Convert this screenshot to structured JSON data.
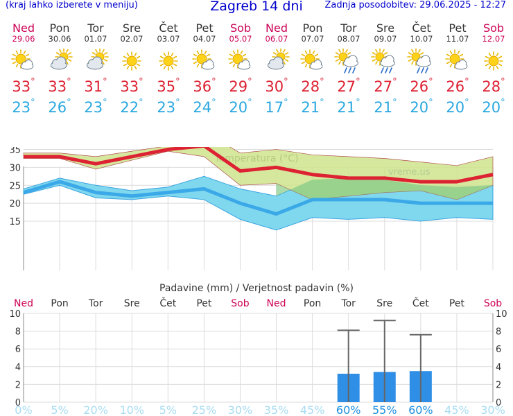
{
  "header": {
    "left": "(kraj lahko izberete v meniju)",
    "title": "Zagreb 14 dni",
    "right": "Zadnja posodobitev: 29.06.2025 - 12:27"
  },
  "days": [
    {
      "name": "Ned",
      "date": "29.06",
      "weekend": true,
      "icon": "sun-partly-cloudy-icon",
      "tmax": "33",
      "tmin": "23"
    },
    {
      "name": "Pon",
      "date": "30.06",
      "weekend": false,
      "icon": "cloudy-sun-icon",
      "tmax": "33",
      "tmin": "26"
    },
    {
      "name": "Tor",
      "date": "01.07",
      "weekend": false,
      "icon": "cloudy-sun-icon",
      "tmax": "31",
      "tmin": "23"
    },
    {
      "name": "Sre",
      "date": "02.07",
      "weekend": false,
      "icon": "sun-icon",
      "tmax": "33",
      "tmin": "22"
    },
    {
      "name": "Čet",
      "date": "03.07",
      "weekend": false,
      "icon": "sun-icon",
      "tmax": "35",
      "tmin": "23"
    },
    {
      "name": "Pet",
      "date": "04.07",
      "weekend": false,
      "icon": "sun-partly-cloudy-icon",
      "tmax": "36",
      "tmin": "24"
    },
    {
      "name": "Sob",
      "date": "05.07",
      "weekend": true,
      "icon": "sun-partly-cloudy-icon",
      "tmax": "29",
      "tmin": "20"
    },
    {
      "name": "Ned",
      "date": "06.07",
      "weekend": true,
      "icon": "cloudy-sun-icon",
      "tmax": "30",
      "tmin": "17"
    },
    {
      "name": "Pon",
      "date": "07.07",
      "weekend": false,
      "icon": "sun-partly-cloudy-icon",
      "tmax": "28",
      "tmin": "21"
    },
    {
      "name": "Tor",
      "date": "08.07",
      "weekend": false,
      "icon": "sun-rain-icon",
      "tmax": "27",
      "tmin": "21"
    },
    {
      "name": "Sre",
      "date": "09.07",
      "weekend": false,
      "icon": "sun-rain-icon",
      "tmax": "27",
      "tmin": "21"
    },
    {
      "name": "Čet",
      "date": "10.07",
      "weekend": false,
      "icon": "sun-rain-icon",
      "tmax": "26",
      "tmin": "20"
    },
    {
      "name": "Pet",
      "date": "11.07",
      "weekend": false,
      "icon": "sun-partly-cloudy-icon",
      "tmax": "26",
      "tmin": "20"
    },
    {
      "name": "Sob",
      "date": "12.07",
      "weekend": true,
      "icon": "sun-icon",
      "tmax": "28",
      "tmin": "20"
    }
  ],
  "colors": {
    "weekend": "#cc0055",
    "weekday": "#333333",
    "tmax": "#dd2233",
    "tmin": "#2aa8e0",
    "max_band": "#cfe48c",
    "min_band": "#80d8ee",
    "overlap": "#88cc88",
    "bars": "#2f8fe6",
    "whisker": "#666666",
    "prob_active": "#1a8fe0",
    "prob_inactive": "#a7dcf2"
  },
  "chart_data": [
    {
      "type": "line",
      "title": "Temperatura (°C)",
      "watermark": "vreme.us",
      "x": [
        "29.06",
        "30.06",
        "01.07",
        "02.07",
        "03.07",
        "04.07",
        "05.07",
        "06.07",
        "07.07",
        "08.07",
        "09.07",
        "10.07",
        "11.07",
        "12.07"
      ],
      "ylim": [
        12,
        41
      ],
      "yticks": [
        15,
        20,
        25,
        30,
        35,
        40
      ],
      "grid": true,
      "series": [
        {
          "values": [
            33,
            33,
            31,
            33,
            35,
            36,
            29,
            30,
            28,
            27,
            27,
            26,
            26,
            28
          ]
        },
        {
          "values": [
            23,
            26,
            23,
            22,
            23,
            24,
            20,
            17,
            21,
            21,
            21,
            20,
            20,
            20
          ]
        }
      ],
      "bands": [
        {
          "upper": [
            34,
            34,
            33,
            34.5,
            36,
            40,
            34,
            35,
            33.5,
            33,
            32.5,
            31.5,
            30.5,
            33
          ],
          "lower": [
            32.5,
            32.5,
            29.5,
            32,
            34.5,
            33,
            25,
            25.5,
            21,
            22,
            23,
            23.5,
            21,
            25
          ]
        },
        {
          "upper": [
            24,
            27,
            25,
            23.5,
            24.5,
            27.5,
            24,
            22,
            26.5,
            27,
            26.5,
            25,
            24.5,
            25
          ]
        },
        {
          "lower": [
            22.5,
            25,
            21.5,
            21,
            22,
            21,
            15.5,
            12.5,
            16,
            15.5,
            16,
            15,
            16,
            15.5
          ]
        }
      ]
    },
    {
      "type": "bar",
      "title": "Padavine (mm) / Verjetnost padavin (%)",
      "categories": [
        "Ned",
        "Pon",
        "Tor",
        "Sre",
        "Čet",
        "Pet",
        "Sob",
        "Ned",
        "Pon",
        "Tor",
        "Sre",
        "Čet",
        "Pet",
        "Sob"
      ],
      "weekend": [
        true,
        false,
        false,
        false,
        false,
        false,
        true,
        true,
        false,
        false,
        false,
        false,
        false,
        true
      ],
      "ylim": [
        0,
        10
      ],
      "yticks": [
        0,
        2,
        4,
        6,
        8,
        10
      ],
      "values": [
        0,
        0,
        0,
        0,
        0,
        0,
        0,
        0,
        0,
        3.2,
        3.4,
        3.5,
        0,
        0
      ],
      "error_max": [
        0,
        0,
        0,
        0,
        0,
        0,
        0,
        0,
        0,
        8.1,
        9.2,
        7.6,
        0,
        0
      ],
      "probability": [
        "0%",
        "5%",
        "20%",
        "10%",
        "5%",
        "25%",
        "30%",
        "35%",
        "45%",
        "60%",
        "55%",
        "60%",
        "45%",
        "30%"
      ],
      "probability_active": [
        false,
        false,
        false,
        false,
        false,
        false,
        false,
        false,
        false,
        true,
        true,
        true,
        false,
        false
      ]
    }
  ]
}
